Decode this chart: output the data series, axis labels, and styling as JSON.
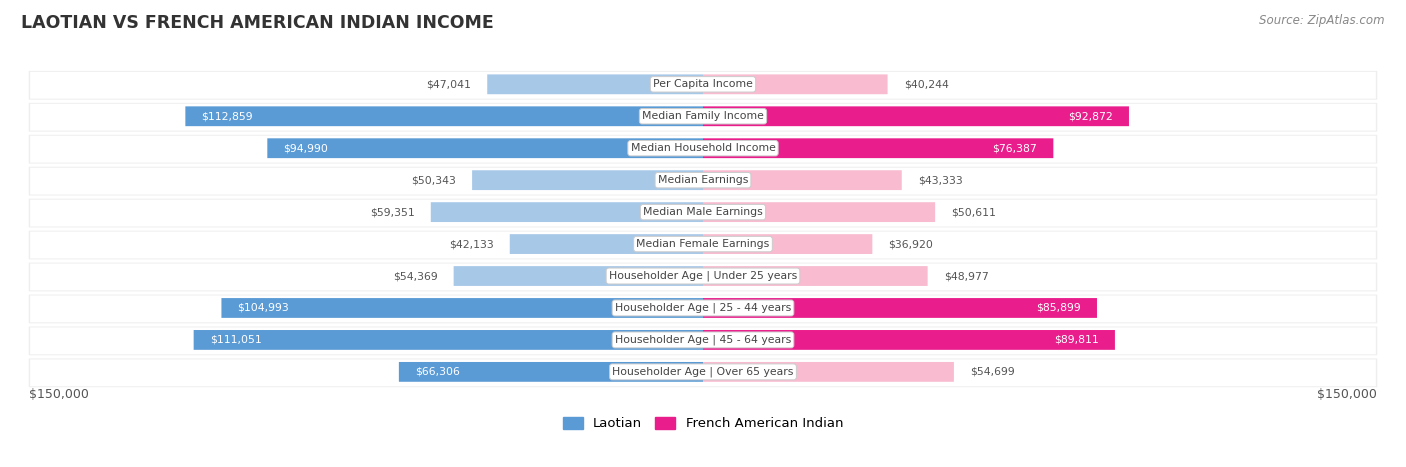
{
  "title": "LAOTIAN VS FRENCH AMERICAN INDIAN INCOME",
  "source": "Source: ZipAtlas.com",
  "categories": [
    "Per Capita Income",
    "Median Family Income",
    "Median Household Income",
    "Median Earnings",
    "Median Male Earnings",
    "Median Female Earnings",
    "Householder Age | Under 25 years",
    "Householder Age | 25 - 44 years",
    "Householder Age | 45 - 64 years",
    "Householder Age | Over 65 years"
  ],
  "laotian_values": [
    47041,
    112859,
    94990,
    50343,
    59351,
    42133,
    54369,
    104993,
    111051,
    66306
  ],
  "french_values": [
    40244,
    92872,
    76387,
    43333,
    50611,
    36920,
    48977,
    85899,
    89811,
    54699
  ],
  "laotian_labels": [
    "$47,041",
    "$112,859",
    "$94,990",
    "$50,343",
    "$59,351",
    "$42,133",
    "$54,369",
    "$104,993",
    "$111,051",
    "$66,306"
  ],
  "french_labels": [
    "$40,244",
    "$92,872",
    "$76,387",
    "$43,333",
    "$50,611",
    "$36,920",
    "$48,977",
    "$85,899",
    "$89,811",
    "$54,699"
  ],
  "max_value": 150000,
  "laotian_color_light": "#a8c8e8",
  "laotian_color_dark": "#5b9bd5",
  "french_color_light": "#f8bbd0",
  "french_color_dark": "#e91e8c",
  "laotian_inside_threshold": 60000,
  "french_inside_threshold": 60000,
  "xlabel_left": "$150,000",
  "xlabel_right": "$150,000",
  "legend_laotian": "Laotian",
  "legend_french": "French American Indian"
}
